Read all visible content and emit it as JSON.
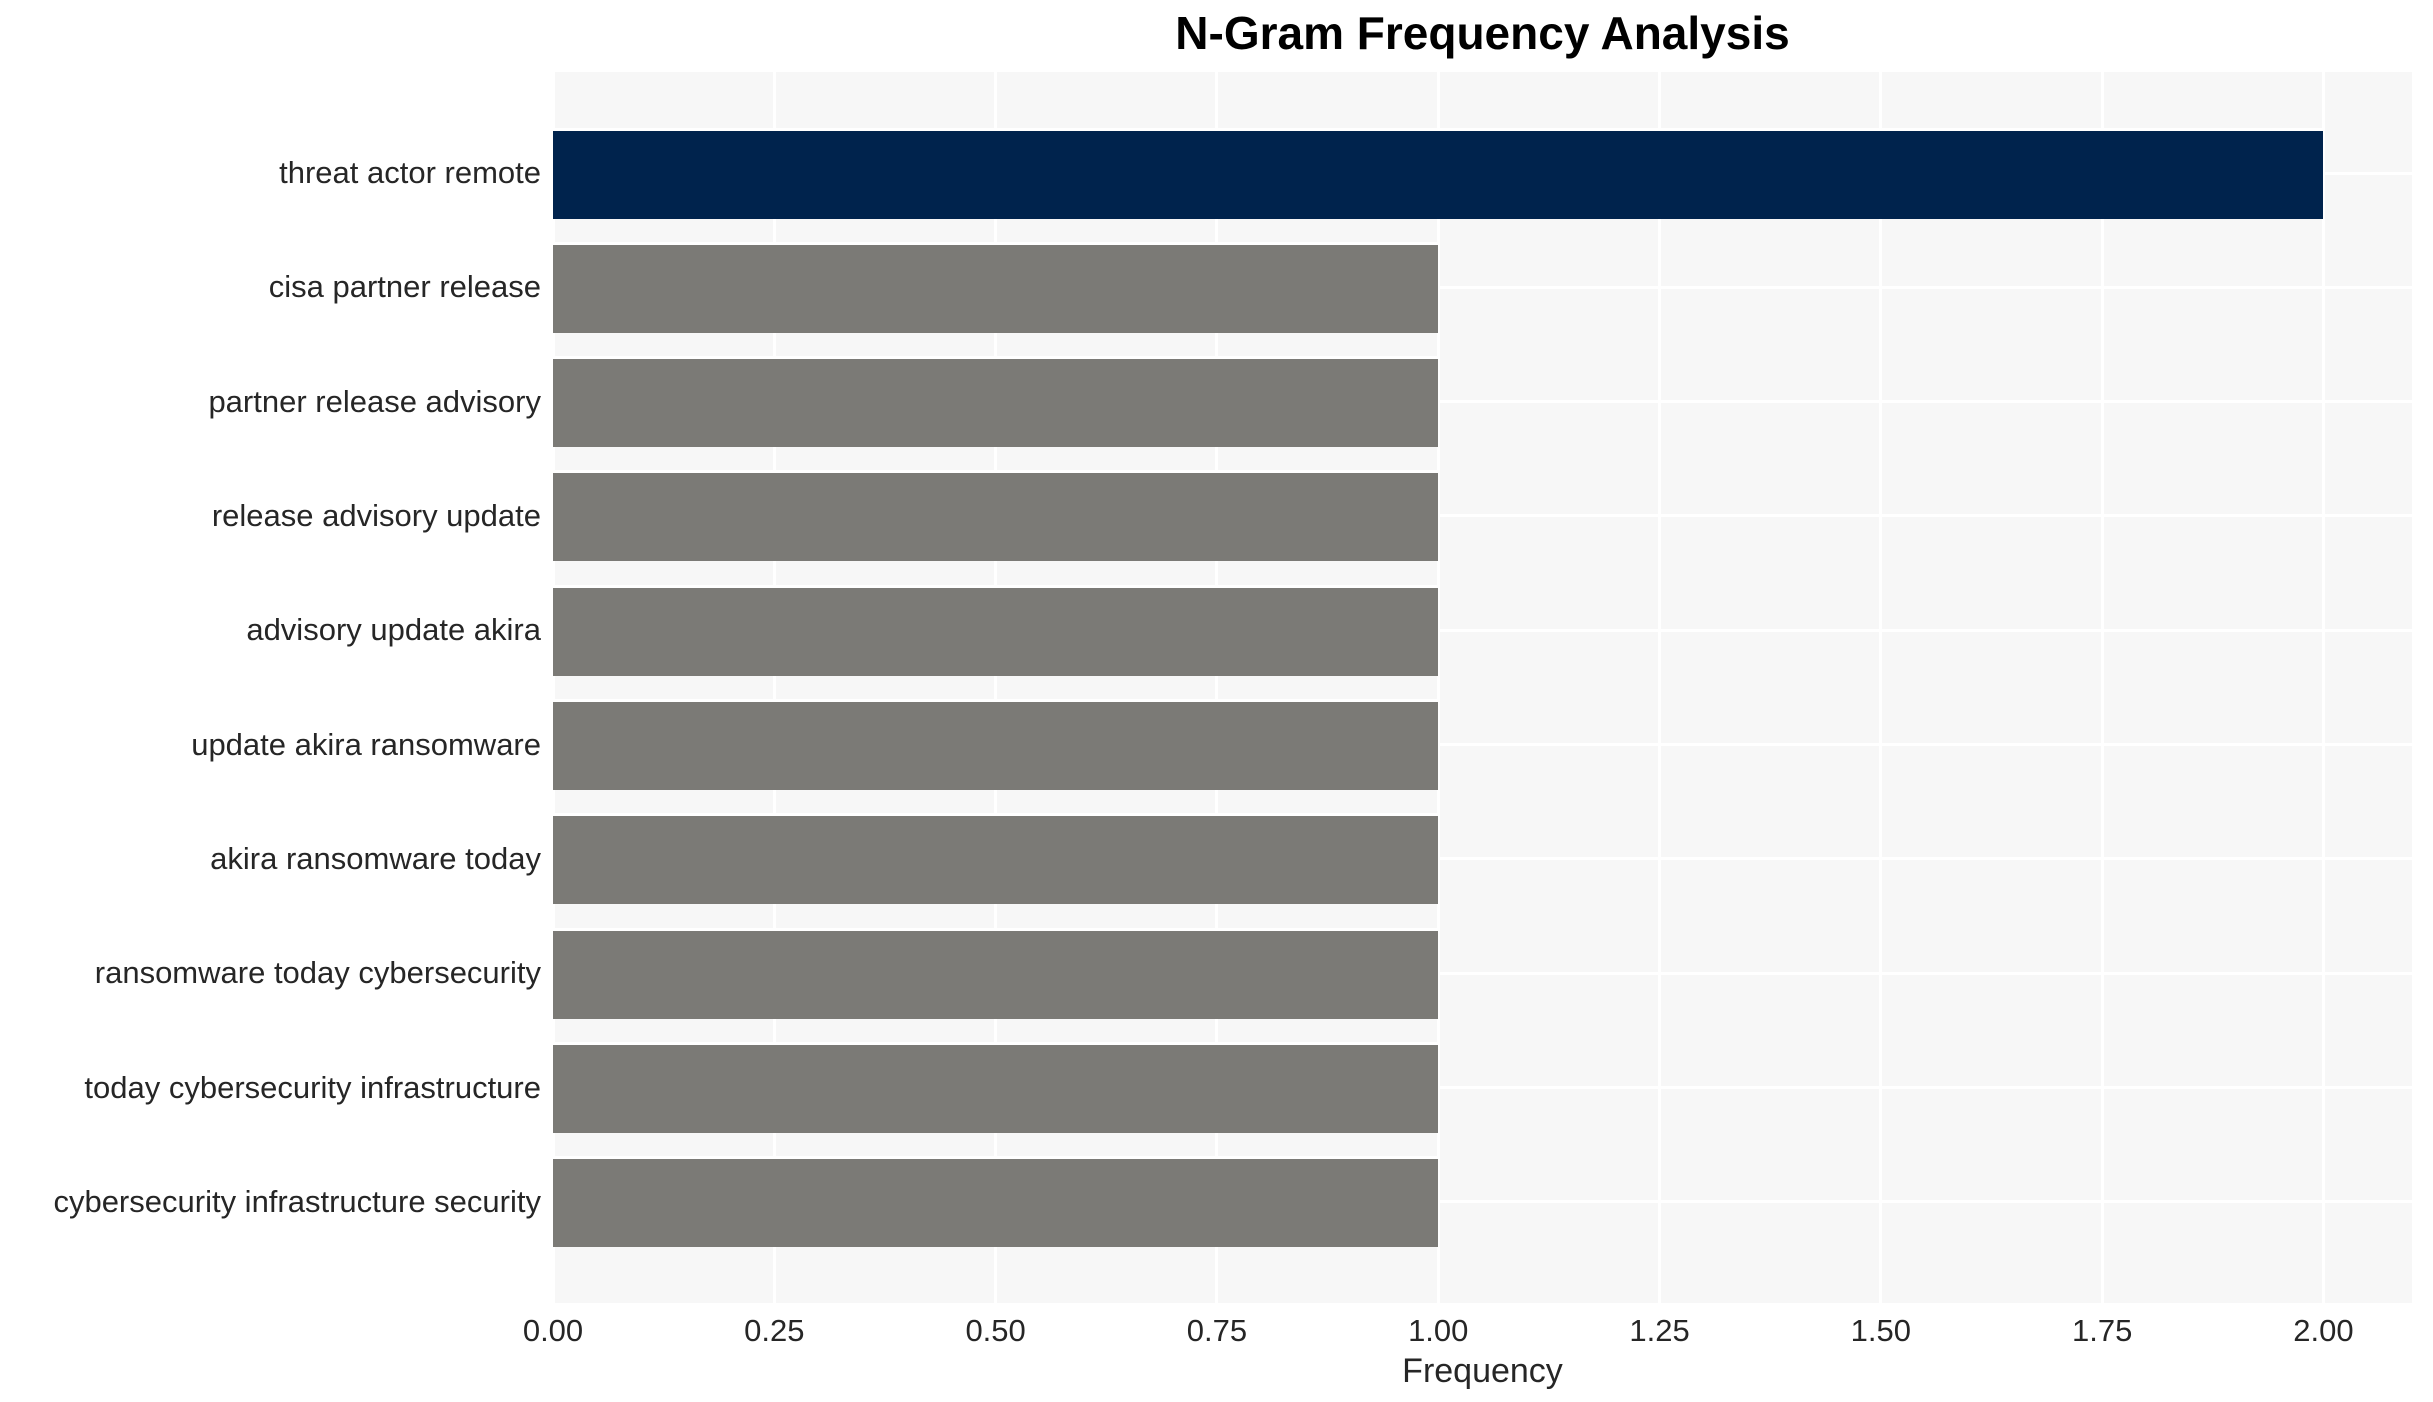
{
  "chart_data": {
    "type": "bar",
    "orientation": "horizontal",
    "title": "N-Gram Frequency Analysis",
    "xlabel": "Frequency",
    "ylabel": "",
    "categories": [
      "threat actor remote",
      "cisa partner release",
      "partner release advisory",
      "release advisory update",
      "advisory update akira",
      "update akira ransomware",
      "akira ransomware today",
      "ransomware today cybersecurity",
      "today cybersecurity infrastructure",
      "cybersecurity infrastructure security"
    ],
    "values": [
      2,
      1,
      1,
      1,
      1,
      1,
      1,
      1,
      1,
      1
    ],
    "bar_colors": [
      "#00234d",
      "#7b7a76",
      "#7b7a76",
      "#7b7a76",
      "#7b7a76",
      "#7b7a76",
      "#7b7a76",
      "#7b7a76",
      "#7b7a76",
      "#7b7a76"
    ],
    "xticks": [
      "0.00",
      "0.25",
      "0.50",
      "0.75",
      "1.00",
      "1.25",
      "1.50",
      "1.75",
      "2.00"
    ],
    "xtick_values": [
      0,
      0.25,
      0.5,
      0.75,
      1.0,
      1.25,
      1.5,
      1.75,
      2.0
    ],
    "xlim": [
      0,
      2.1
    ],
    "grid": "white gridlines on light panel, vertical at x ticks and horizontal at bar centers, drawn under bars",
    "legend": null,
    "colors": {
      "plot_background": "#f7f7f7",
      "grid_line": "#ffffff",
      "axis_text": "#262626",
      "title_text": "#000000",
      "highlight_bar": "#00234d",
      "default_bar": "#7b7a76"
    }
  }
}
